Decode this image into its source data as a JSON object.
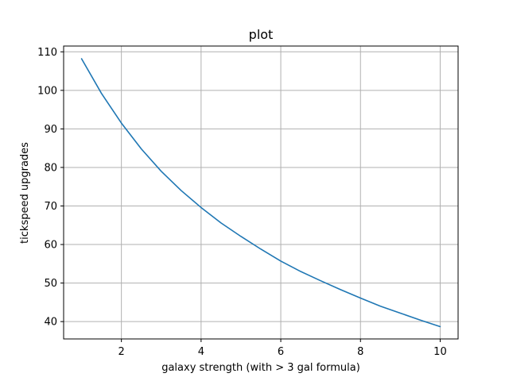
{
  "chart_data": {
    "type": "line",
    "title": "plot",
    "xlabel": "galaxy strength (with > 3 gal formula)",
    "ylabel": "tickspeed upgrades",
    "xlim": [
      0.55,
      10.45
    ],
    "ylim": [
      35.5,
      111.5
    ],
    "xticks": [
      2,
      4,
      6,
      8,
      10
    ],
    "yticks": [
      40,
      50,
      60,
      70,
      80,
      90,
      100,
      110
    ],
    "grid": true,
    "series": [
      {
        "color": "#1f77b4",
        "x": [
          1,
          1.5,
          2,
          2.5,
          3,
          3.5,
          4,
          4.5,
          5,
          5.5,
          6,
          6.5,
          7,
          7.5,
          8,
          8.5,
          9,
          9.5,
          10
        ],
        "y": [
          108.2,
          99.2,
          91.5,
          84.8,
          79.0,
          74.0,
          69.6,
          65.6,
          62.1,
          58.8,
          55.7,
          53.0,
          50.6,
          48.3,
          46.1,
          44.0,
          42.2,
          40.4,
          38.7
        ]
      }
    ]
  }
}
